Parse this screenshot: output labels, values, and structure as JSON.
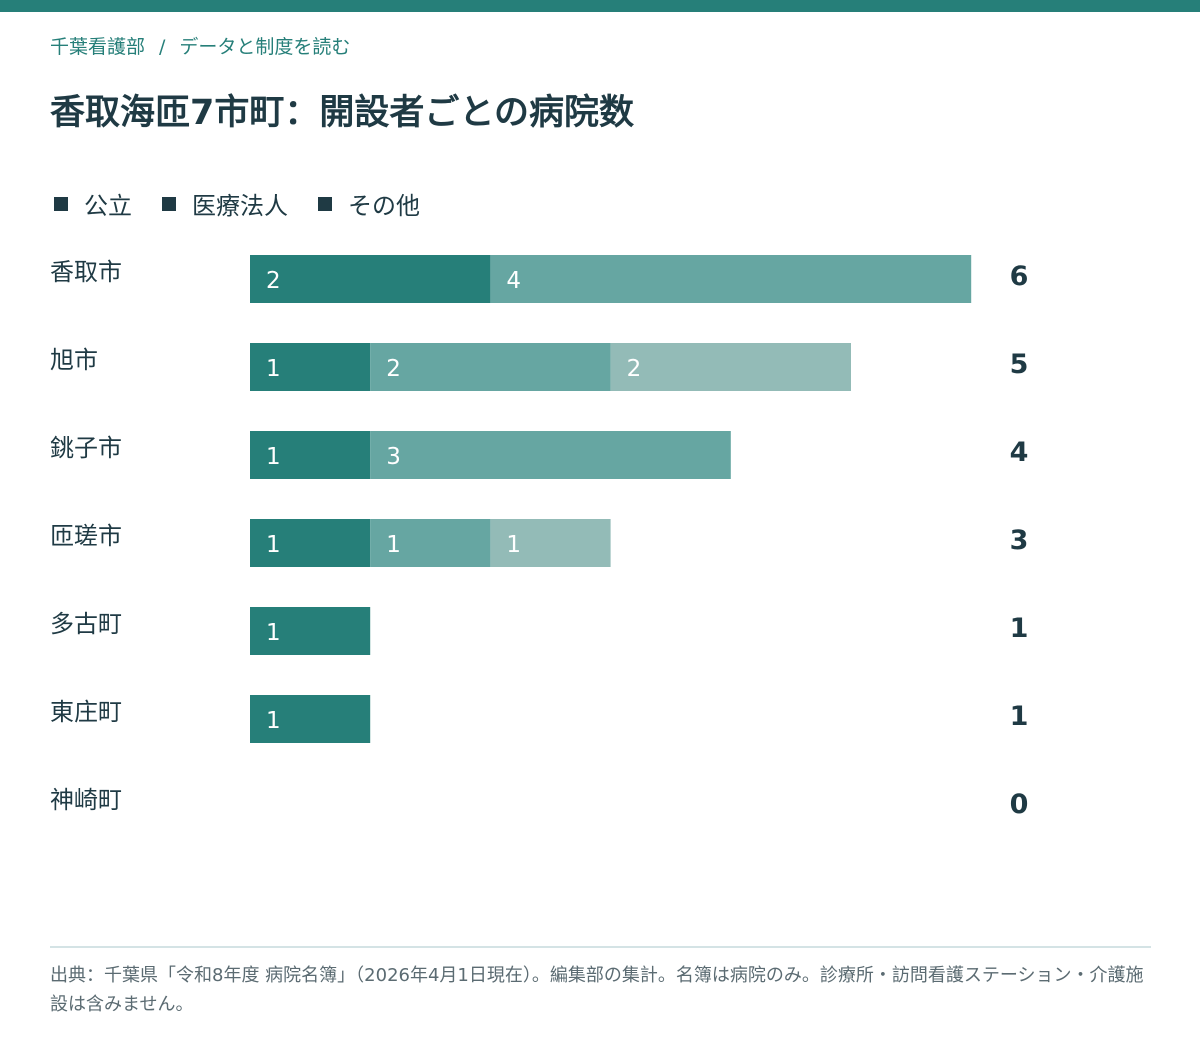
{
  "breadcrumb": {
    "parent": "千葉看護部",
    "separator": "/",
    "current": "データと制度を読む"
  },
  "title": "香取海匝7市町：開設者ごとの病院数",
  "legend": {
    "items": [
      "公立",
      "医療法人",
      "その他"
    ]
  },
  "colors": {
    "public": "#267f79",
    "medical_corp": "#66a6a2",
    "other": "#93bbb7",
    "accent": "#267f79",
    "text": "#1f3a44"
  },
  "chart_data": {
    "type": "bar",
    "orientation": "horizontal",
    "stacked": true,
    "title": "香取海匝7市町：開設者ごとの病院数",
    "categories": [
      "香取市",
      "旭市",
      "銚子市",
      "匝瑳市",
      "多古町",
      "東庄町",
      "神崎町"
    ],
    "series": [
      {
        "name": "公立",
        "values": [
          2,
          1,
          1,
          1,
          1,
          1,
          0
        ]
      },
      {
        "name": "医療法人",
        "values": [
          4,
          2,
          3,
          1,
          0,
          0,
          0
        ]
      },
      {
        "name": "その他",
        "values": [
          0,
          2,
          0,
          1,
          0,
          0,
          0
        ]
      }
    ],
    "totals": [
      6,
      5,
      4,
      3,
      1,
      1,
      0
    ],
    "xlim": [
      0,
      6
    ],
    "legend_position": "top-left",
    "grid": false
  },
  "footer": {
    "source": "出典：千葉県「令和8年度 病院名簿」（2026年4月1日現在）。編集部の集計。名簿は病院のみ。診療所・訪問看護ステーション・介護施設は含みません。"
  }
}
